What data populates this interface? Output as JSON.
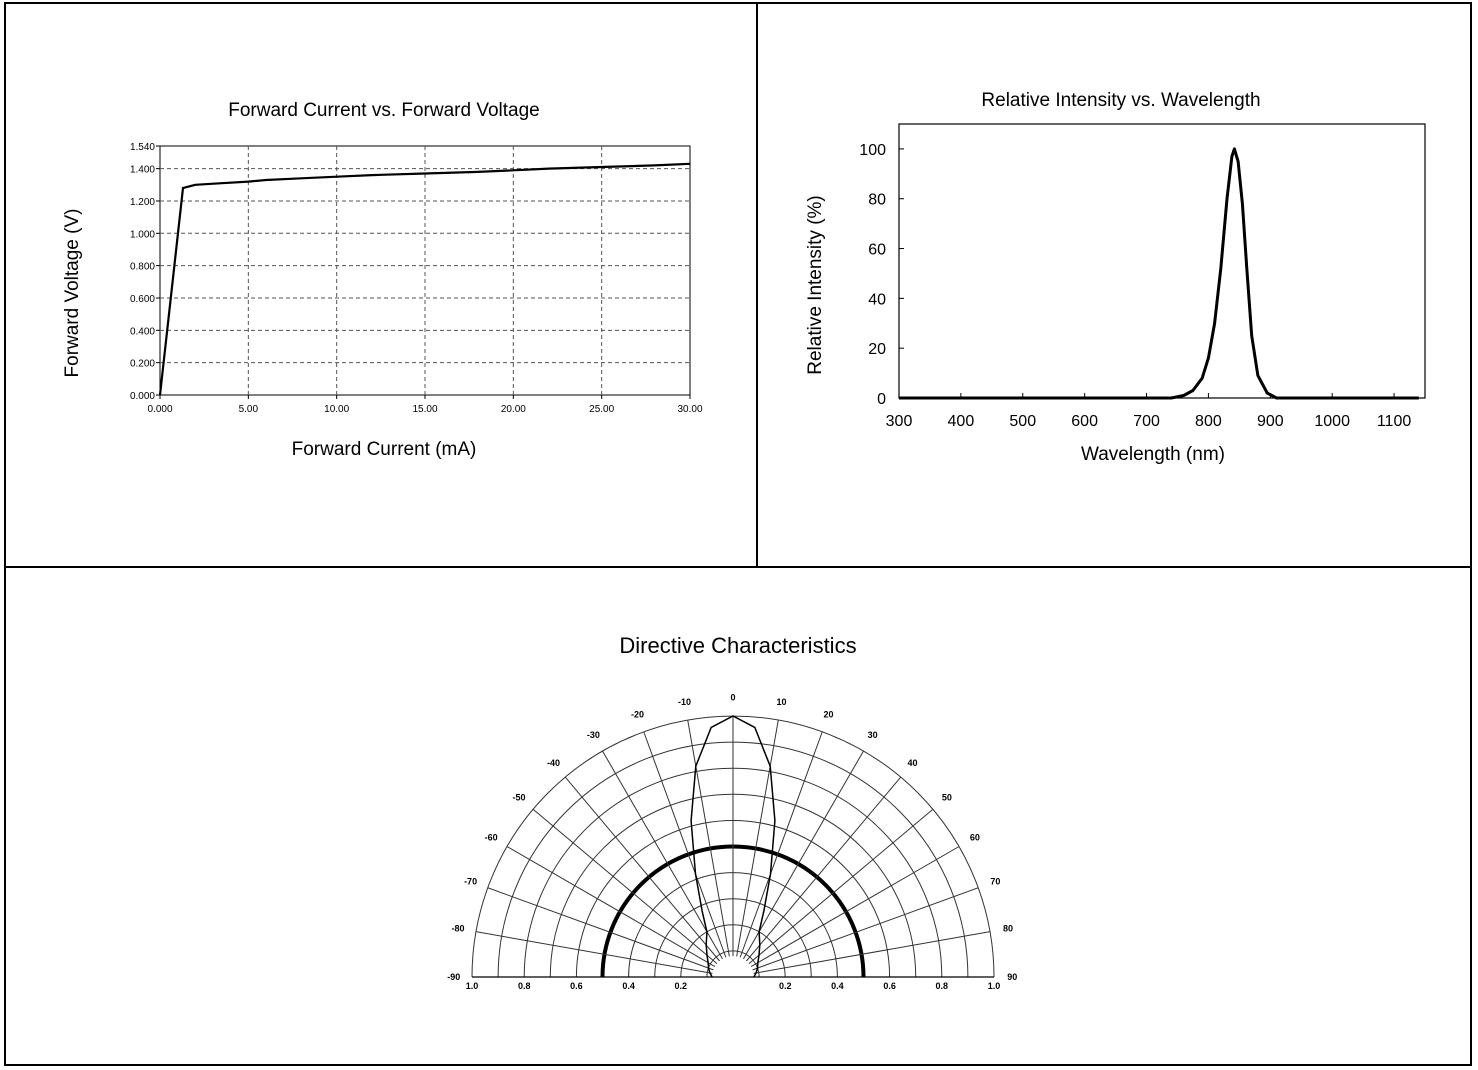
{
  "chart_data": [
    {
      "type": "line",
      "title": "Forward Current vs. Forward Voltage",
      "xlabel": "Forward Current (mA)",
      "ylabel": "Forward Voltage (V)",
      "xlim": [
        0,
        30
      ],
      "ylim": [
        0,
        1.54
      ],
      "grid": true,
      "x_ticks": [
        "0.000",
        "5.00",
        "10.00",
        "15.00",
        "20.00",
        "25.00",
        "30.00"
      ],
      "x_tick_values": [
        0,
        5,
        10,
        15,
        20,
        25,
        30
      ],
      "y_ticks": [
        "0.000",
        "0.200",
        "0.400",
        "0.600",
        "0.800",
        "1.000",
        "1.200",
        "1.400",
        "1.540"
      ],
      "y_tick_values": [
        0,
        0.2,
        0.4,
        0.6,
        0.8,
        1.0,
        1.2,
        1.4,
        1.54
      ],
      "series": [
        {
          "x": [
            0,
            1.3,
            2.0,
            3.5,
            5,
            6,
            8,
            10,
            12,
            15,
            18,
            20,
            22,
            25,
            28,
            30
          ],
          "y": [
            0,
            1.28,
            1.3,
            1.31,
            1.32,
            1.33,
            1.34,
            1.35,
            1.36,
            1.37,
            1.38,
            1.39,
            1.4,
            1.41,
            1.42,
            1.43
          ]
        }
      ]
    },
    {
      "type": "line",
      "title": "Relative Intensity vs. Wavelength",
      "xlabel": "Wavelength (nm)",
      "ylabel": "Relative Intensity (%)",
      "xlim": [
        300,
        1150
      ],
      "ylim": [
        0,
        110
      ],
      "grid": false,
      "x_ticks": [
        "300",
        "400",
        "500",
        "600",
        "700",
        "800",
        "900",
        "1000",
        "1100"
      ],
      "x_tick_values": [
        300,
        400,
        500,
        600,
        700,
        800,
        900,
        1000,
        1100
      ],
      "y_ticks": [
        "0",
        "20",
        "40",
        "60",
        "80",
        "100"
      ],
      "y_tick_values": [
        0,
        20,
        40,
        60,
        80,
        100
      ],
      "series": [
        {
          "x": [
            300,
            740,
            760,
            775,
            790,
            800,
            810,
            820,
            830,
            838,
            842,
            848,
            855,
            862,
            870,
            880,
            895,
            910,
            1140
          ],
          "y": [
            0,
            0,
            1,
            3,
            8,
            16,
            30,
            52,
            80,
            97,
            100,
            95,
            78,
            52,
            25,
            9,
            2,
            0,
            0
          ]
        }
      ]
    },
    {
      "type": "polar",
      "title": "Directive Characteristics",
      "angle_labels": [
        "-90",
        "-80",
        "-70",
        "-60",
        "-50",
        "-40",
        "-30",
        "-20",
        "-10",
        "0",
        "10",
        "20",
        "30",
        "40",
        "50",
        "60",
        "70",
        "80",
        "90"
      ],
      "angle_values": [
        -90,
        -80,
        -70,
        -60,
        -50,
        -40,
        -30,
        -20,
        -10,
        0,
        10,
        20,
        30,
        40,
        50,
        60,
        70,
        80,
        90
      ],
      "radial_labels": [
        "1.0",
        "0.8",
        "0.6",
        "0.4",
        "0.2",
        "0.2",
        "0.4",
        "0.6",
        "0.8",
        "1.0"
      ],
      "radial_values": [
        1.0,
        0.8,
        0.6,
        0.4,
        0.2,
        0.2,
        0.4,
        0.6,
        0.8,
        1.0
      ],
      "highlighted_ring": 0.5,
      "series": [
        {
          "angle": [
            -90,
            -80,
            -70,
            -60,
            -50,
            -40,
            -30,
            -25,
            -20,
            -15,
            -10,
            -5,
            0,
            5,
            10,
            15,
            20,
            25,
            30,
            40,
            50,
            60,
            70,
            80,
            90
          ],
          "r": [
            0.08,
            0.09,
            0.1,
            0.11,
            0.13,
            0.16,
            0.2,
            0.28,
            0.42,
            0.62,
            0.82,
            0.96,
            1.0,
            0.96,
            0.82,
            0.62,
            0.42,
            0.28,
            0.2,
            0.16,
            0.13,
            0.11,
            0.1,
            0.09,
            0.08
          ]
        }
      ]
    }
  ]
}
